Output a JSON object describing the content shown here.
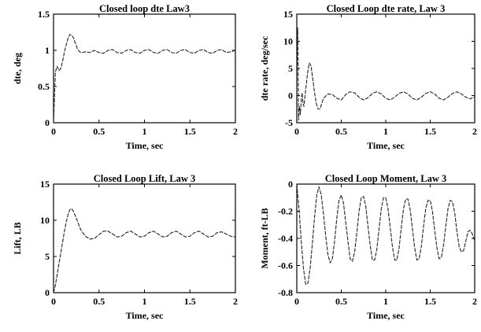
{
  "chart_data": [
    {
      "type": "line",
      "title": "Closed loop dte Law3",
      "xlabel": "Time, sec",
      "ylabel": "dte, deg",
      "xlim": [
        0,
        2
      ],
      "ylim": [
        0,
        1.5
      ],
      "xticks": [
        "0",
        "0.5",
        "1",
        "1.5",
        "2"
      ],
      "yticks": [
        "0",
        "0.5",
        "1",
        "1.5"
      ],
      "grid": false,
      "series": [
        {
          "x": [
            0,
            0.02,
            0.04,
            0.06,
            0.08,
            0.1,
            0.12,
            0.14,
            0.16,
            0.18,
            0.2,
            0.22,
            0.24,
            0.26,
            0.28,
            0.3,
            0.32,
            0.35,
            0.4,
            0.45,
            0.5,
            0.55,
            0.6,
            0.65,
            0.7,
            0.75,
            0.8,
            0.85,
            0.9,
            0.95,
            1.0,
            1.05,
            1.1,
            1.15,
            1.2,
            1.25,
            1.3,
            1.35,
            1.4,
            1.45,
            1.5,
            1.55,
            1.6,
            1.65,
            1.7,
            1.75,
            1.8,
            1.85,
            1.9,
            1.95,
            2.0
          ],
          "y": [
            0,
            0.7,
            0.78,
            0.72,
            0.75,
            0.85,
            0.98,
            1.08,
            1.17,
            1.22,
            1.21,
            1.17,
            1.1,
            1.03,
            0.99,
            0.97,
            0.97,
            0.98,
            0.97,
            1.0,
            0.97,
            0.96,
            1.0,
            1.01,
            0.97,
            0.96,
            1.0,
            1.01,
            0.97,
            0.96,
            1.0,
            1.01,
            0.97,
            0.96,
            1.0,
            1.01,
            0.97,
            0.96,
            1.0,
            1.01,
            0.97,
            0.96,
            1.0,
            1.01,
            0.97,
            0.96,
            1.0,
            1.01,
            0.97,
            0.98,
            1.0
          ]
        }
      ]
    },
    {
      "type": "line",
      "title": "Closed Loop dte rate, Law 3",
      "xlabel": "Time, sec",
      "ylabel": "dte rate, deg/sec",
      "xlim": [
        0,
        2
      ],
      "ylim": [
        -5,
        15
      ],
      "xticks": [
        "0",
        "0.5",
        "1",
        "1.5",
        "2"
      ],
      "yticks": [
        "-5",
        "0",
        "5",
        "10",
        "15"
      ],
      "grid": false,
      "series": [
        {
          "x": [
            0,
            0.005,
            0.01,
            0.015,
            0.02,
            0.03,
            0.04,
            0.05,
            0.06,
            0.07,
            0.08,
            0.1,
            0.12,
            0.14,
            0.16,
            0.18,
            0.2,
            0.22,
            0.24,
            0.26,
            0.28,
            0.3,
            0.35,
            0.4,
            0.45,
            0.5,
            0.55,
            0.6,
            0.65,
            0.7,
            0.75,
            0.8,
            0.85,
            0.9,
            0.95,
            1.0,
            1.05,
            1.1,
            1.15,
            1.2,
            1.25,
            1.3,
            1.35,
            1.4,
            1.45,
            1.5,
            1.55,
            1.6,
            1.65,
            1.7,
            1.75,
            1.8,
            1.85,
            1.9,
            1.95,
            2.0
          ],
          "y": [
            0,
            9,
            12.5,
            5,
            -4.5,
            -2,
            -3.5,
            -1,
            0.5,
            -1.5,
            -2,
            1,
            4,
            6,
            5.5,
            3,
            0.5,
            -1.5,
            -2.5,
            -2.5,
            -1.5,
            -0.5,
            0.3,
            0.2,
            -0.5,
            -0.8,
            0.2,
            0.7,
            0.5,
            -0.3,
            -0.8,
            -0.4,
            0.4,
            0.7,
            0.3,
            -0.5,
            -0.8,
            -0.3,
            0.4,
            0.7,
            0.3,
            -0.5,
            -0.8,
            -0.3,
            0.4,
            0.7,
            0.3,
            -0.5,
            -0.8,
            -0.3,
            0.4,
            0.7,
            0.3,
            -0.3,
            -0.6,
            -0.2
          ]
        }
      ]
    },
    {
      "type": "line",
      "title": "Closed Loop Lift, Law 3",
      "xlabel": "Time, sec",
      "ylabel": "Lift, LB",
      "xlim": [
        0,
        2
      ],
      "ylim": [
        0,
        15
      ],
      "xticks": [
        "0",
        "0.5",
        "1",
        "1.5",
        "2"
      ],
      "yticks": [
        "0",
        "5",
        "10",
        "15"
      ],
      "grid": false,
      "series": [
        {
          "x": [
            0,
            0.02,
            0.04,
            0.06,
            0.08,
            0.1,
            0.12,
            0.14,
            0.16,
            0.18,
            0.2,
            0.22,
            0.25,
            0.28,
            0.3,
            0.35,
            0.4,
            0.45,
            0.5,
            0.55,
            0.6,
            0.65,
            0.7,
            0.75,
            0.8,
            0.85,
            0.9,
            0.95,
            1.0,
            1.05,
            1.1,
            1.15,
            1.2,
            1.25,
            1.3,
            1.35,
            1.4,
            1.45,
            1.5,
            1.55,
            1.6,
            1.65,
            1.7,
            1.75,
            1.8,
            1.85,
            1.9,
            1.95,
            2.0
          ],
          "y": [
            0,
            1,
            2.5,
            4,
            5.5,
            7,
            8.5,
            9.8,
            10.8,
            11.5,
            11.6,
            11.2,
            10.3,
            9.3,
            8.7,
            7.8,
            7.4,
            7.5,
            8.0,
            8.5,
            8.5,
            8.1,
            7.7,
            7.8,
            8.3,
            8.5,
            8.1,
            7.7,
            7.8,
            8.3,
            8.5,
            8.1,
            7.7,
            7.8,
            8.3,
            8.5,
            8.1,
            7.7,
            7.8,
            8.3,
            8.5,
            8.1,
            7.7,
            7.8,
            8.3,
            8.4,
            8.1,
            7.8,
            7.7
          ]
        }
      ]
    },
    {
      "type": "line",
      "title": "Closed Loop Moment, Law 3",
      "xlabel": "Time, sec",
      "ylabel": "Moment, ft-LB",
      "xlim": [
        0,
        2
      ],
      "ylim": [
        -0.8,
        0
      ],
      "xticks": [
        "0",
        "0.5",
        "1",
        "1.5",
        "2"
      ],
      "yticks": [
        "-0.8",
        "-0.6",
        "-0.4",
        "-0.2",
        "0"
      ],
      "grid": false,
      "series": [
        {
          "x": [
            0,
            0.025,
            0.05,
            0.075,
            0.1,
            0.125,
            0.15,
            0.175,
            0.2,
            0.225,
            0.25,
            0.275,
            0.3,
            0.325,
            0.35,
            0.375,
            0.4,
            0.425,
            0.45,
            0.475,
            0.5,
            0.525,
            0.55,
            0.575,
            0.6,
            0.625,
            0.65,
            0.675,
            0.7,
            0.725,
            0.75,
            0.775,
            0.8,
            0.825,
            0.85,
            0.875,
            0.9,
            0.925,
            0.95,
            0.975,
            1.0,
            1.025,
            1.05,
            1.075,
            1.1,
            1.125,
            1.15,
            1.175,
            1.2,
            1.225,
            1.25,
            1.275,
            1.3,
            1.325,
            1.35,
            1.375,
            1.4,
            1.425,
            1.45,
            1.475,
            1.5,
            1.525,
            1.55,
            1.575,
            1.6,
            1.625,
            1.65,
            1.675,
            1.7,
            1.725,
            1.75,
            1.775,
            1.8,
            1.825,
            1.85,
            1.875,
            1.9,
            1.925,
            1.95,
            1.975,
            2.0
          ],
          "y": [
            0,
            -0.18,
            -0.42,
            -0.62,
            -0.74,
            -0.73,
            -0.62,
            -0.44,
            -0.24,
            -0.08,
            -0.02,
            -0.08,
            -0.22,
            -0.38,
            -0.52,
            -0.58,
            -0.55,
            -0.42,
            -0.25,
            -0.12,
            -0.08,
            -0.14,
            -0.28,
            -0.42,
            -0.55,
            -0.57,
            -0.5,
            -0.36,
            -0.2,
            -0.1,
            -0.09,
            -0.16,
            -0.31,
            -0.45,
            -0.56,
            -0.56,
            -0.48,
            -0.33,
            -0.18,
            -0.1,
            -0.1,
            -0.18,
            -0.32,
            -0.46,
            -0.56,
            -0.56,
            -0.47,
            -0.32,
            -0.18,
            -0.11,
            -0.11,
            -0.19,
            -0.33,
            -0.47,
            -0.56,
            -0.55,
            -0.46,
            -0.31,
            -0.18,
            -0.12,
            -0.12,
            -0.2,
            -0.34,
            -0.47,
            -0.55,
            -0.54,
            -0.45,
            -0.31,
            -0.18,
            -0.12,
            -0.13,
            -0.21,
            -0.35,
            -0.46,
            -0.5,
            -0.49,
            -0.42,
            -0.35,
            -0.34,
            -0.37,
            -0.42
          ]
        }
      ]
    }
  ]
}
